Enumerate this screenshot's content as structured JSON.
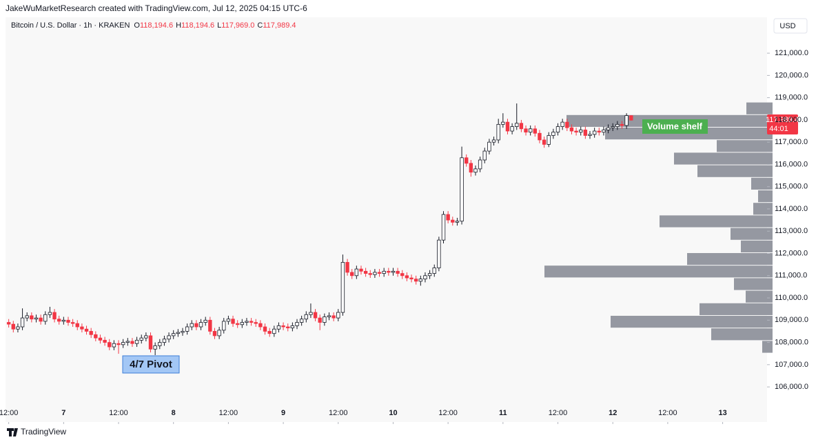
{
  "chart_data": {
    "type": "candlestick",
    "header": "JakeWuMarketResearch created with TradingView.com, Jul 12, 2025 04:15 UTC-6",
    "symbol": "Bitcoin / U.S. Dollar · 1h · KRAKEN",
    "ohlc_legend": [
      {
        "key": "O",
        "value": "118,194.6"
      },
      {
        "key": "H",
        "value": "118,194.6"
      },
      {
        "key": "L",
        "value": "117,969.0"
      },
      {
        "key": "C",
        "value": "117,989.4"
      }
    ],
    "currency": "USD",
    "up_color": "#ffffff",
    "down_color": "#f23645",
    "grid": false,
    "open": [
      108900,
      108820,
      108600,
      108700,
      109100,
      109200,
      109050,
      109100,
      108950,
      109250,
      109350,
      109050,
      108950,
      109000,
      108900,
      108850,
      108700,
      108600,
      108500,
      108350,
      108200,
      108100,
      108000,
      107800,
      107950,
      107900,
      108000,
      108050,
      107950,
      108100,
      108200,
      108300,
      107700,
      107850,
      108000,
      108150,
      108300,
      108400,
      108450,
      108500,
      108700,
      108850,
      108700,
      108900,
      109000,
      108500,
      108300,
      108550,
      108950,
      109050,
      108850,
      108800,
      108900,
      108950,
      108900,
      108850,
      108700,
      108500,
      108400,
      108600,
      108750,
      108700,
      108650,
      108750,
      108900,
      109050,
      109250,
      109350,
      109100,
      108900,
      109150,
      109200,
      109100,
      109350,
      111600,
      111150,
      111000,
      111300,
      111200,
      111100,
      111050,
      111150,
      111100,
      111200,
      111150,
      111200,
      111100,
      111000,
      110900,
      110850,
      110750,
      110850,
      111000,
      111100,
      111350,
      112600,
      113750,
      113500,
      113400,
      113450,
      116300,
      116050,
      115650,
      115800,
      116200,
      116600,
      117000,
      117100,
      117800,
      117900,
      117500,
      117700,
      117850,
      117600,
      117450,
      117600,
      117400,
      117100,
      116900,
      117300,
      117450,
      117700,
      117900,
      117650,
      117500,
      117450,
      117550,
      117300,
      117350,
      117500,
      117450,
      117550,
      117650,
      117700,
      117800,
      117750,
      118194.6
    ],
    "high": [
      109050,
      108970,
      108850,
      109530,
      109350,
      109350,
      109250,
      109250,
      109400,
      109600,
      109500,
      109200,
      109150,
      109150,
      109050,
      109000,
      108850,
      108750,
      108650,
      108500,
      108350,
      108250,
      108150,
      108100,
      108100,
      108150,
      108200,
      108200,
      108250,
      108350,
      108450,
      108450,
      108000,
      108150,
      108300,
      108450,
      108550,
      108600,
      108650,
      108850,
      109000,
      109000,
      109050,
      109150,
      109150,
      108650,
      108700,
      109100,
      109200,
      109200,
      109000,
      109050,
      109100,
      109100,
      109050,
      109000,
      108850,
      108650,
      108750,
      108900,
      108900,
      108850,
      108900,
      109050,
      109200,
      109400,
      109750,
      109500,
      109250,
      109300,
      109350,
      109350,
      109500,
      111950,
      111750,
      111300,
      111450,
      111450,
      111350,
      111250,
      111300,
      111300,
      111350,
      111350,
      111350,
      111350,
      111250,
      111150,
      111050,
      111000,
      111000,
      111150,
      111250,
      111500,
      112750,
      113900,
      113900,
      113650,
      113600,
      116800,
      116450,
      116200,
      115950,
      116350,
      116750,
      117150,
      117250,
      118050,
      118300,
      118050,
      117850,
      118740,
      118000,
      117750,
      117750,
      117750,
      117550,
      117250,
      117450,
      117600,
      117850,
      118050,
      118050,
      117800,
      117650,
      117700,
      117700,
      117500,
      117650,
      117650,
      117700,
      117800,
      117850,
      117950,
      117950,
      118300,
      118194.6
    ],
    "low": [
      108670,
      108450,
      108450,
      108550,
      108950,
      108900,
      108900,
      108800,
      108800,
      109100,
      108900,
      108800,
      108800,
      108750,
      108700,
      108550,
      108450,
      108350,
      108200,
      108050,
      107950,
      107850,
      107650,
      107650,
      107490,
      107750,
      107850,
      107800,
      107800,
      107950,
      108050,
      107550,
      107430,
      107700,
      107850,
      108000,
      108150,
      108250,
      108300,
      108350,
      108550,
      108550,
      108550,
      108750,
      108350,
      108150,
      108150,
      108400,
      108800,
      108700,
      108650,
      108650,
      108750,
      108750,
      108700,
      108550,
      108350,
      108250,
      108250,
      108450,
      108550,
      108500,
      108500,
      108600,
      108750,
      108900,
      109100,
      108950,
      108550,
      108750,
      109000,
      108950,
      108950,
      109200,
      111000,
      110850,
      110850,
      111050,
      110950,
      110900,
      110900,
      110950,
      110950,
      111000,
      111000,
      110950,
      110850,
      110750,
      110700,
      110600,
      110550,
      110700,
      110850,
      110950,
      111200,
      112450,
      113350,
      113250,
      113250,
      113300,
      115900,
      115450,
      115500,
      115650,
      116050,
      116450,
      116850,
      116950,
      117650,
      117350,
      117350,
      117550,
      117450,
      117300,
      117300,
      117250,
      116950,
      116750,
      116780,
      117150,
      117300,
      117550,
      117500,
      117350,
      117300,
      117300,
      117150,
      117150,
      117200,
      117300,
      117300,
      117400,
      117500,
      117550,
      117600,
      117600,
      117969.0
    ],
    "close": [
      108820,
      108600,
      108700,
      109100,
      109200,
      109050,
      109100,
      108950,
      109250,
      109350,
      109050,
      108950,
      109000,
      108900,
      108850,
      108700,
      108600,
      108500,
      108350,
      108200,
      108100,
      108000,
      107800,
      107950,
      107900,
      108000,
      108050,
      107950,
      108100,
      108200,
      108300,
      107700,
      107850,
      108000,
      108150,
      108300,
      108400,
      108450,
      108500,
      108700,
      108850,
      108700,
      108900,
      109000,
      108500,
      108300,
      108550,
      108950,
      109050,
      108850,
      108800,
      108900,
      108950,
      108900,
      108850,
      108700,
      108500,
      108400,
      108600,
      108750,
      108700,
      108650,
      108750,
      108900,
      109050,
      109250,
      109350,
      109100,
      108900,
      109150,
      109200,
      109100,
      109350,
      111600,
      111150,
      111000,
      111300,
      111200,
      111100,
      111050,
      111150,
      111100,
      111200,
      111150,
      111200,
      111100,
      111000,
      110900,
      110850,
      110750,
      110850,
      111000,
      111100,
      111350,
      112600,
      113750,
      113500,
      113400,
      113450,
      116300,
      116050,
      115650,
      115800,
      116200,
      116600,
      117000,
      117100,
      117800,
      117900,
      117500,
      117700,
      117850,
      117600,
      117450,
      117600,
      117400,
      117100,
      116900,
      117300,
      117450,
      117700,
      117900,
      117650,
      117500,
      117450,
      117550,
      117300,
      117350,
      117500,
      117450,
      117550,
      117650,
      117700,
      117800,
      117750,
      118194.6,
      117989.4
    ],
    "xlim": [
      -0.7,
      165.7
    ],
    "xticks": [
      {
        "value": 0,
        "label": "12:00"
      },
      {
        "value": 12,
        "label": "7"
      },
      {
        "value": 24,
        "label": "12:00"
      },
      {
        "value": 36,
        "label": "8"
      },
      {
        "value": 48,
        "label": "12:00"
      },
      {
        "value": 60,
        "label": "9"
      },
      {
        "value": 72,
        "label": "12:00"
      },
      {
        "value": 84,
        "label": "10"
      },
      {
        "value": 96,
        "label": "12:00"
      },
      {
        "value": 108,
        "label": "11"
      },
      {
        "value": 120,
        "label": "12:00"
      },
      {
        "value": 132,
        "label": "12"
      },
      {
        "value": 144,
        "label": "12:00"
      },
      {
        "value": 156,
        "label": "13"
      }
    ],
    "ylim": [
      105260,
      121840
    ],
    "yticks": [
      {
        "value": 106000,
        "label": "106,000.0"
      },
      {
        "value": 107000,
        "label": "107,000.0"
      },
      {
        "value": 108000,
        "label": "108,000.0"
      },
      {
        "value": 109000,
        "label": "109,000.0"
      },
      {
        "value": 110000,
        "label": "110,000.0"
      },
      {
        "value": 111000,
        "label": "111,000.0"
      },
      {
        "value": 112000,
        "label": "112,000.0"
      },
      {
        "value": 113000,
        "label": "113,000.0"
      },
      {
        "value": 114000,
        "label": "114,000.0"
      },
      {
        "value": 115000,
        "label": "115,000.0"
      },
      {
        "value": 116000,
        "label": "116,000.0"
      },
      {
        "value": 117000,
        "label": "117,000.0"
      },
      {
        "value": 118000,
        "label": "118,000.0"
      },
      {
        "value": 119000,
        "label": "119,000.0"
      },
      {
        "value": 120000,
        "label": "120,000.0"
      },
      {
        "value": 121000,
        "label": "121,000.0"
      }
    ],
    "last_price_label": "117,989.4",
    "countdown": "44:01",
    "volume_profile": {
      "color": "#9598a1",
      "bins": [
        118800,
        118236,
        117672,
        117108,
        116544,
        115980,
        115416,
        114852,
        114288,
        113724,
        113160,
        112596,
        112032,
        111468,
        110904,
        110340,
        109776,
        109212,
        108648,
        108084,
        107520
      ],
      "values": [
        38,
        299,
        243,
        81,
        143,
        109,
        31,
        21,
        28,
        164,
        61,
        46,
        124,
        331,
        56,
        39,
        106,
        235,
        89,
        15
      ]
    },
    "annotations": [
      "4/7 Pivot",
      "Volume shelf"
    ],
    "footer": "TradingView"
  }
}
